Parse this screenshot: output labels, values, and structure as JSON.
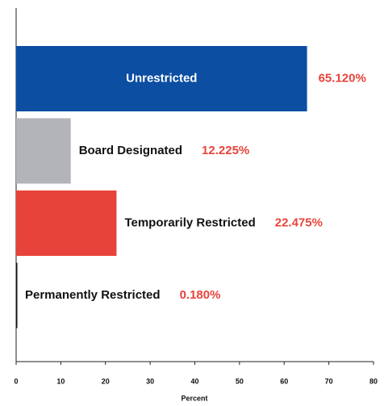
{
  "chart_data": {
    "type": "barh",
    "categories": [
      "Unrestricted",
      "Board Designated",
      "Temporarily Restricted",
      "Permanently Restricted"
    ],
    "values": [
      65.12,
      12.225,
      22.475,
      0.18
    ],
    "value_labels": [
      "65.120%",
      "12.225%",
      "22.475%",
      "0.180%"
    ],
    "colors": [
      "#0b4ea2",
      "#b3b3ba",
      "#e8433a",
      "#111111"
    ],
    "value_label_color": "#e8433a",
    "xlabel": "Percent",
    "xlim": [
      0,
      80
    ],
    "xticks": [
      0,
      10,
      20,
      30,
      40,
      50,
      60,
      70,
      80
    ]
  }
}
